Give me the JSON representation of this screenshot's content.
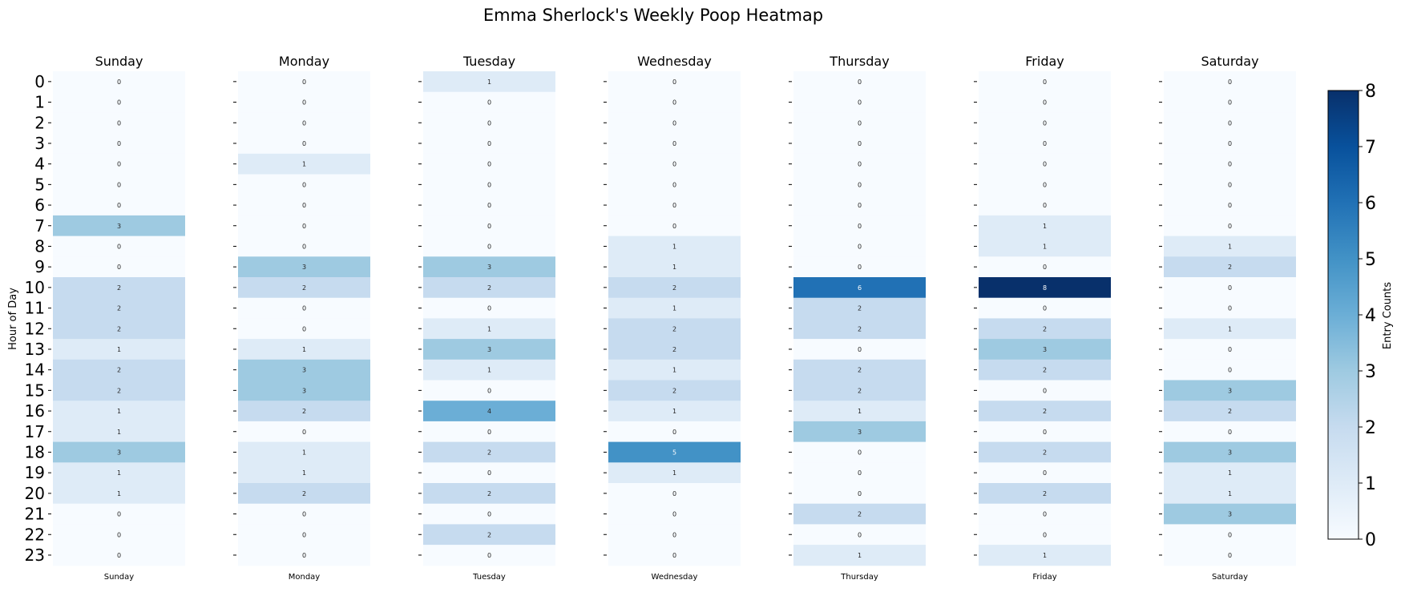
{
  "chart_data": {
    "type": "heatmap",
    "title": "Emma Sherlock's Weekly Poop Heatmap",
    "ylabel": "Hour of Day",
    "colorbar_label": "Entry Counts",
    "colorbar_ticks": [
      "0",
      "1",
      "2",
      "3",
      "4",
      "5",
      "6",
      "7",
      "8"
    ],
    "value_range": [
      0,
      8
    ],
    "colormap": "Blues",
    "hours": [
      "0",
      "1",
      "2",
      "3",
      "4",
      "5",
      "6",
      "7",
      "8",
      "9",
      "10",
      "11",
      "12",
      "13",
      "14",
      "15",
      "16",
      "17",
      "18",
      "19",
      "20",
      "21",
      "22",
      "23"
    ],
    "days": [
      "Sunday",
      "Monday",
      "Tuesday",
      "Wednesday",
      "Thursday",
      "Friday",
      "Saturday"
    ],
    "values": [
      [
        0,
        0,
        0,
        0,
        0,
        0,
        0,
        3,
        0,
        0,
        2,
        2,
        2,
        1,
        2,
        2,
        1,
        1,
        3,
        1,
        1,
        0,
        0,
        0
      ],
      [
        0,
        0,
        0,
        0,
        1,
        0,
        0,
        0,
        0,
        3,
        2,
        0,
        0,
        1,
        3,
        3,
        2,
        0,
        1,
        1,
        2,
        0,
        0,
        0
      ],
      [
        1,
        0,
        0,
        0,
        0,
        0,
        0,
        0,
        0,
        3,
        2,
        0,
        1,
        3,
        1,
        0,
        4,
        0,
        2,
        0,
        2,
        0,
        2,
        0
      ],
      [
        0,
        0,
        0,
        0,
        0,
        0,
        0,
        0,
        1,
        1,
        2,
        1,
        2,
        2,
        1,
        2,
        1,
        0,
        5,
        1,
        0,
        0,
        0,
        0
      ],
      [
        0,
        0,
        0,
        0,
        0,
        0,
        0,
        0,
        0,
        0,
        6,
        2,
        2,
        0,
        2,
        2,
        1,
        3,
        0,
        0,
        0,
        2,
        0,
        1
      ],
      [
        0,
        0,
        0,
        0,
        0,
        0,
        0,
        1,
        1,
        0,
        8,
        0,
        2,
        3,
        2,
        0,
        2,
        0,
        2,
        0,
        2,
        0,
        0,
        1
      ],
      [
        0,
        0,
        0,
        0,
        0,
        0,
        0,
        0,
        1,
        2,
        0,
        0,
        1,
        0,
        0,
        3,
        2,
        0,
        3,
        1,
        1,
        3,
        0,
        0
      ]
    ]
  }
}
